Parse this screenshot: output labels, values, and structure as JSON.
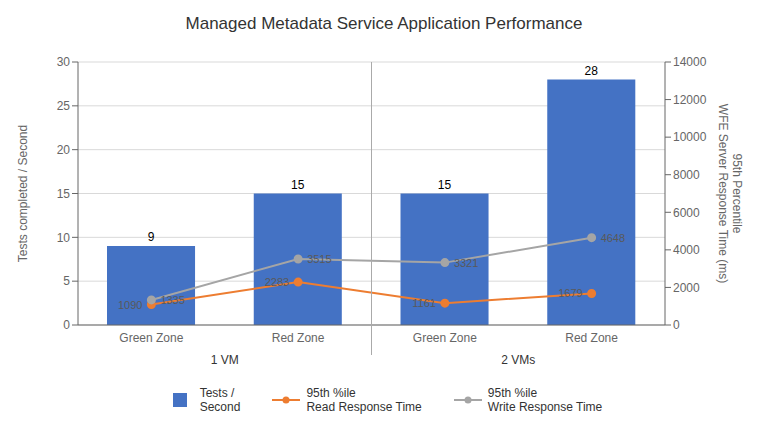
{
  "chart_data": {
    "type": "bar",
    "title": "Managed Metadata Service Application Performance",
    "categories": [
      "Green Zone",
      "Red Zone",
      "Green Zone",
      "Red Zone"
    ],
    "annotations": [
      "1 VM",
      "2 VMs"
    ],
    "ylabel": "Tests completed / Second",
    "y2label": "95th Percentile\nWFE Server Response Time (ms)",
    "series": [
      {
        "name": "Tests /\nSecond",
        "type": "bar",
        "color": "#4472C4",
        "values": [
          9,
          15,
          15,
          28
        ],
        "data_labels": true
      },
      {
        "name": "95th %ile\nRead Response Time",
        "type": "line",
        "axis": "y2",
        "color": "#ED7D31",
        "marker": "circle",
        "values": [
          1090,
          2283,
          1161,
          1679
        ],
        "data_labels": true
      },
      {
        "name": "95th %ile\nWrite Response Time",
        "type": "line",
        "axis": "y2",
        "color": "#A5A5A5",
        "marker": "circle",
        "values": [
          1335,
          3515,
          3321,
          4648
        ],
        "data_labels": true
      }
    ],
    "ylim": [
      0,
      30
    ],
    "yticks": [
      0,
      5,
      10,
      15,
      20,
      25,
      30
    ],
    "y2lim": [
      0,
      14000
    ],
    "y2ticks": [
      0,
      2000,
      4000,
      6000,
      8000,
      10000,
      12000,
      14000
    ],
    "grid": true,
    "legend": "bottom"
  }
}
